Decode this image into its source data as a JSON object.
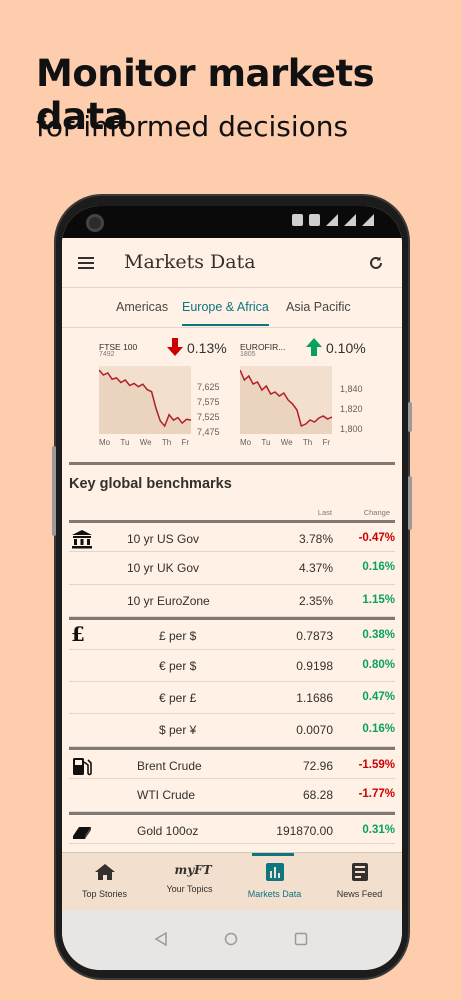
{
  "promo": {
    "headline": "Monitor markets data",
    "subheadline": "for informed decisions"
  },
  "appbar": {
    "title": "Markets Data",
    "menu_icon": "menu-icon",
    "refresh_icon": "refresh-icon"
  },
  "tabs": [
    {
      "label": "Americas",
      "active": false
    },
    {
      "label": "Europe & Africa",
      "active": true
    },
    {
      "label": "Asia Pacific",
      "active": false
    }
  ],
  "mini_charts": [
    {
      "name": "FTSE 100",
      "code": "7492",
      "change": "0.13%",
      "direction": "down",
      "y_ticks": [
        "7,625",
        "7,575",
        "7,525",
        "7,475"
      ],
      "days": [
        "Mo",
        "Tu",
        "We",
        "Th",
        "Fr"
      ],
      "series": [
        7612,
        7600,
        7605,
        7590,
        7593,
        7582,
        7588,
        7575,
        7580,
        7572,
        7578,
        7565,
        7560,
        7520,
        7490,
        7478,
        7505,
        7492,
        7498,
        7485,
        7494,
        7492
      ]
    },
    {
      "name": "EUROFIR...",
      "code": "1805",
      "change": "0.10%",
      "direction": "up",
      "y_ticks": [
        "1,840",
        "1,820",
        "1,800"
      ],
      "days": [
        "Mo",
        "Tu",
        "We",
        "Th",
        "Fr"
      ],
      "series": [
        1852,
        1842,
        1846,
        1838,
        1840,
        1832,
        1836,
        1828,
        1830,
        1826,
        1829,
        1822,
        1818,
        1812,
        1796,
        1798,
        1802,
        1800,
        1804,
        1806,
        1803,
        1805
      ]
    }
  ],
  "benchmarks": {
    "title": "Key global benchmarks",
    "col_last": "Last",
    "col_change": "Change",
    "groups": [
      {
        "icon": "bank-icon",
        "rows": [
          {
            "label": "10 yr US Gov",
            "last": "3.78%",
            "change": "-0.47%",
            "dir": "neg"
          },
          {
            "label": "10 yr UK Gov",
            "last": "4.37%",
            "change": "0.16%",
            "dir": "pos"
          },
          {
            "label": "10 yr EuroZone",
            "last": "2.35%",
            "change": "1.15%",
            "dir": "pos"
          }
        ]
      },
      {
        "icon": "pound-icon",
        "icon_text": "£",
        "rows": [
          {
            "label": "£ per $",
            "last": "0.7873",
            "change": "0.38%",
            "dir": "pos"
          },
          {
            "label": "€ per $",
            "last": "0.9198",
            "change": "0.80%",
            "dir": "pos"
          },
          {
            "label": "€ per £",
            "last": "1.1686",
            "change": "0.47%",
            "dir": "pos"
          },
          {
            "label": "$ per ¥",
            "last": "0.0070",
            "change": "0.16%",
            "dir": "pos"
          }
        ]
      },
      {
        "icon": "fuel-pump-icon",
        "rows": [
          {
            "label": "Brent Crude",
            "last": "72.96",
            "change": "-1.59%",
            "dir": "neg"
          },
          {
            "label": "WTI Crude",
            "last": "68.28",
            "change": "-1.77%",
            "dir": "neg"
          }
        ]
      },
      {
        "icon": "gold-bar-icon",
        "rows": [
          {
            "label": "Gold 100oz",
            "last": "191870.00",
            "change": "0.31%",
            "dir": "pos"
          }
        ]
      }
    ]
  },
  "bottom_nav": [
    {
      "label": "Top Stories",
      "icon": "home-icon",
      "active": false
    },
    {
      "label": "Your Topics",
      "icon": "myft-icon",
      "icon_text": "myFT",
      "active": false
    },
    {
      "label": "Markets Data",
      "icon": "bar-chart-icon",
      "active": true
    },
    {
      "label": "News Feed",
      "icon": "news-feed-icon",
      "active": false
    }
  ],
  "colors": {
    "background": "#fdcdae",
    "paper": "#fff1e5",
    "accent": "#0d7680",
    "positive": "#09a25c",
    "negative": "#cc0000"
  }
}
